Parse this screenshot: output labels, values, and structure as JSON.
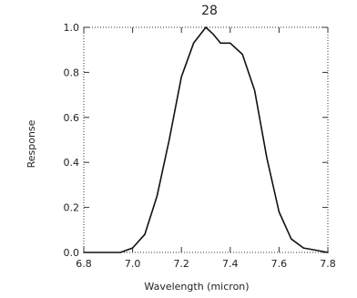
{
  "chart_data": {
    "type": "line",
    "title": "28",
    "xlabel": "Wavelength (micron)",
    "ylabel": "Response",
    "xlim": [
      6.8,
      7.8
    ],
    "ylim": [
      0.0,
      1.0
    ],
    "xticks": [
      6.8,
      7.0,
      7.2,
      7.4,
      7.6,
      7.8
    ],
    "xtick_labels": [
      "6.8",
      "7.0",
      "7.2",
      "7.4",
      "7.6",
      "7.8"
    ],
    "yticks": [
      0.0,
      0.2,
      0.4,
      0.6,
      0.8,
      1.0
    ],
    "ytick_labels": [
      "0.0",
      "0.2",
      "0.4",
      "0.6",
      "0.8",
      "1.0"
    ],
    "grid": false,
    "frame": "dotted",
    "series": [
      {
        "color": "#111111",
        "x": [
          6.8,
          6.95,
          7.0,
          7.05,
          7.1,
          7.15,
          7.2,
          7.25,
          7.3,
          7.33,
          7.36,
          7.4,
          7.45,
          7.5,
          7.55,
          7.6,
          7.65,
          7.7,
          7.75,
          7.8
        ],
        "y": [
          0.0,
          0.0,
          0.02,
          0.08,
          0.25,
          0.5,
          0.78,
          0.93,
          1.0,
          0.97,
          0.93,
          0.93,
          0.88,
          0.72,
          0.42,
          0.18,
          0.06,
          0.02,
          0.01,
          0.0
        ]
      }
    ]
  }
}
